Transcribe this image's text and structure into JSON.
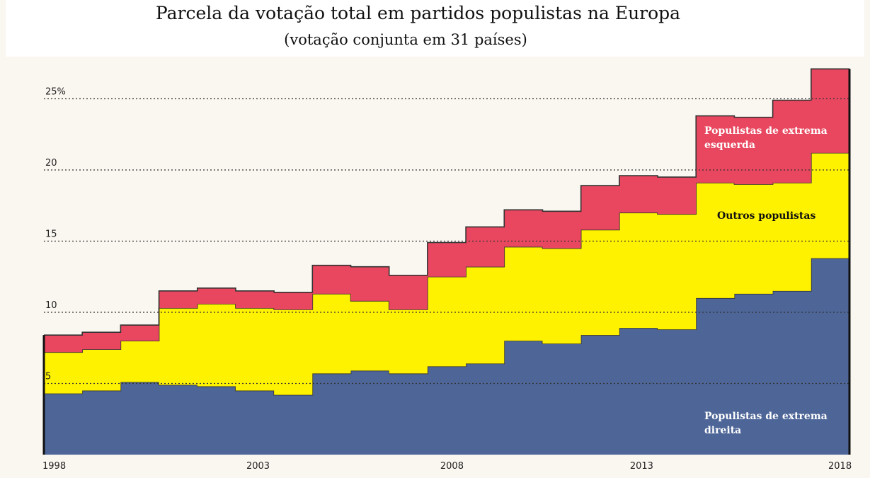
{
  "chart_data": {
    "type": "area",
    "stacked": true,
    "step": true,
    "title": "Parcela da votação total em partidos populistas na Europa",
    "subtitle": "(votação conjunta em 31 países)",
    "x": [
      1998,
      1999,
      2000,
      2001,
      2002,
      2003,
      2004,
      2005,
      2006,
      2007,
      2008,
      2009,
      2010,
      2011,
      2012,
      2013,
      2014,
      2015,
      2016,
      2017,
      2018
    ],
    "x_tick_labels": [
      "1998",
      "2003",
      "2008",
      "2013",
      "2018"
    ],
    "y_tick_labels": [
      "5",
      "10",
      "15",
      "20",
      "25%"
    ],
    "ylim": [
      0,
      27
    ],
    "grid": "horizontal dotted",
    "series": [
      {
        "name": "Populistas de extrema direita",
        "color": "#4d6597",
        "values": [
          4.3,
          4.5,
          5.1,
          4.9,
          4.8,
          4.5,
          4.2,
          5.7,
          5.9,
          5.7,
          6.2,
          6.4,
          8.0,
          7.8,
          8.4,
          8.9,
          8.8,
          11.0,
          11.3,
          11.5,
          13.8
        ]
      },
      {
        "name": "Outros populistas",
        "color": "#fff200",
        "values": [
          2.9,
          2.9,
          2.9,
          5.4,
          5.8,
          5.8,
          6.0,
          5.6,
          4.9,
          4.5,
          6.3,
          6.8,
          6.6,
          6.7,
          7.4,
          8.1,
          8.1,
          8.1,
          7.7,
          7.6,
          7.4
        ]
      },
      {
        "name": "Populistas de extrema esquerda",
        "color": "#e8475f",
        "values": [
          1.2,
          1.2,
          1.1,
          1.2,
          1.1,
          1.2,
          1.2,
          2.0,
          2.4,
          2.4,
          2.4,
          2.8,
          2.6,
          2.6,
          3.1,
          2.6,
          2.6,
          4.7,
          4.7,
          5.8,
          5.9
        ]
      }
    ]
  }
}
